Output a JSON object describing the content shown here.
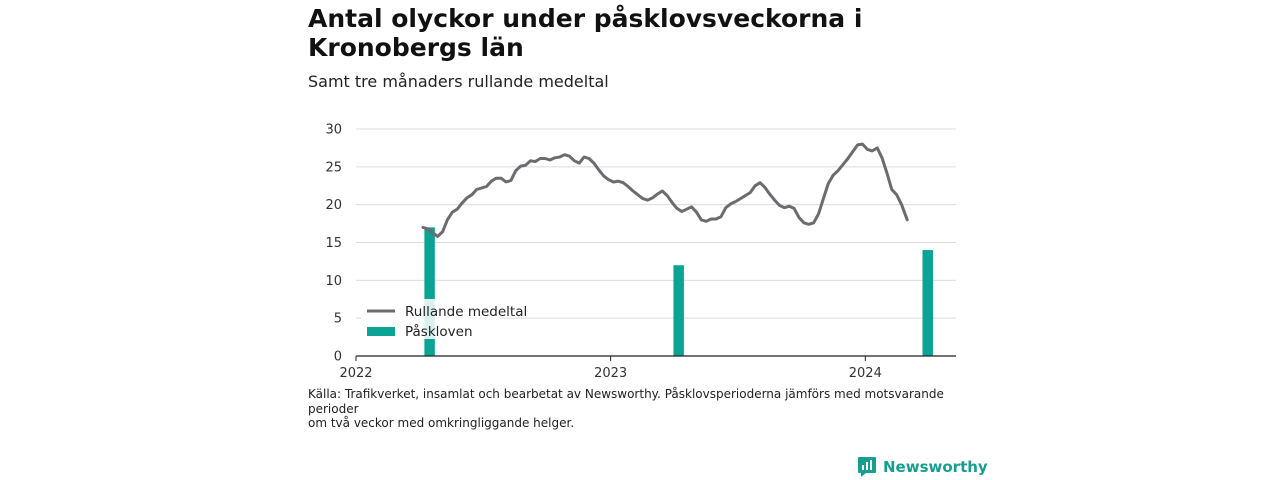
{
  "title": "Antal olyckor under påsklovsveckorna i Kronobergs län",
  "subtitle": "Samt tre månaders rullande medeltal",
  "source_lines": [
    "Källa: Trafikverket, insamlat och bearbetat av Newsworthy. Påsklovsperioderna jämförs med motsvarande perioder",
    "om två veckor med omkringliggande helger."
  ],
  "brand": "Newsworthy",
  "colors": {
    "line": "#6b6b70",
    "bar": "#0aa394",
    "brand": "#169e8f"
  },
  "chart_data": {
    "type": "bar+line",
    "ylim": [
      0,
      30
    ],
    "yticks": [
      0,
      5,
      10,
      15,
      20,
      25,
      30
    ],
    "xlim": [
      "2022-01-01",
      "2024-05-10"
    ],
    "xticks": [
      {
        "label": "2022",
        "date": "2022-01-01"
      },
      {
        "label": "2023",
        "date": "2023-01-01"
      },
      {
        "label": "2024",
        "date": "2024-01-01"
      }
    ],
    "grid": true,
    "legend_position": "bottom-left",
    "series": [
      {
        "name": "Rullande medeltal",
        "type": "line",
        "points": [
          [
            "2022-04-07",
            17.0
          ],
          [
            "2022-04-14",
            16.8
          ],
          [
            "2022-04-21",
            16.3
          ],
          [
            "2022-04-28",
            15.8
          ],
          [
            "2022-05-05",
            16.4
          ],
          [
            "2022-05-12",
            18.0
          ],
          [
            "2022-05-19",
            19.0
          ],
          [
            "2022-05-26",
            19.4
          ],
          [
            "2022-06-02",
            20.2
          ],
          [
            "2022-06-09",
            20.9
          ],
          [
            "2022-06-16",
            21.3
          ],
          [
            "2022-06-23",
            22.0
          ],
          [
            "2022-06-30",
            22.2
          ],
          [
            "2022-07-07",
            22.4
          ],
          [
            "2022-07-14",
            23.1
          ],
          [
            "2022-07-21",
            23.5
          ],
          [
            "2022-07-28",
            23.5
          ],
          [
            "2022-08-04",
            23.0
          ],
          [
            "2022-08-11",
            23.2
          ],
          [
            "2022-08-18",
            24.5
          ],
          [
            "2022-08-25",
            25.1
          ],
          [
            "2022-09-01",
            25.2
          ],
          [
            "2022-09-08",
            25.8
          ],
          [
            "2022-09-15",
            25.7
          ],
          [
            "2022-09-22",
            26.1
          ],
          [
            "2022-09-29",
            26.1
          ],
          [
            "2022-10-06",
            25.9
          ],
          [
            "2022-10-13",
            26.2
          ],
          [
            "2022-10-20",
            26.3
          ],
          [
            "2022-10-27",
            26.6
          ],
          [
            "2022-11-03",
            26.4
          ],
          [
            "2022-11-10",
            25.8
          ],
          [
            "2022-11-17",
            25.5
          ],
          [
            "2022-11-24",
            26.3
          ],
          [
            "2022-12-01",
            26.1
          ],
          [
            "2022-12-08",
            25.5
          ],
          [
            "2022-12-15",
            24.6
          ],
          [
            "2022-12-22",
            23.8
          ],
          [
            "2022-12-29",
            23.3
          ],
          [
            "2023-01-05",
            23.0
          ],
          [
            "2023-01-12",
            23.1
          ],
          [
            "2023-01-19",
            22.9
          ],
          [
            "2023-01-26",
            22.4
          ],
          [
            "2023-02-02",
            21.8
          ],
          [
            "2023-02-09",
            21.3
          ],
          [
            "2023-02-16",
            20.8
          ],
          [
            "2023-02-23",
            20.6
          ],
          [
            "2023-03-02",
            20.9
          ],
          [
            "2023-03-09",
            21.4
          ],
          [
            "2023-03-16",
            21.8
          ],
          [
            "2023-03-23",
            21.2
          ],
          [
            "2023-03-30",
            20.3
          ],
          [
            "2023-04-06",
            19.5
          ],
          [
            "2023-04-13",
            19.1
          ],
          [
            "2023-04-20",
            19.4
          ],
          [
            "2023-04-27",
            19.7
          ],
          [
            "2023-05-04",
            19.0
          ],
          [
            "2023-05-11",
            18.0
          ],
          [
            "2023-05-18",
            17.8
          ],
          [
            "2023-05-25",
            18.1
          ],
          [
            "2023-06-01",
            18.1
          ],
          [
            "2023-06-08",
            18.4
          ],
          [
            "2023-06-15",
            19.6
          ],
          [
            "2023-06-22",
            20.1
          ],
          [
            "2023-06-29",
            20.4
          ],
          [
            "2023-07-06",
            20.8
          ],
          [
            "2023-07-13",
            21.2
          ],
          [
            "2023-07-20",
            21.6
          ],
          [
            "2023-07-27",
            22.5
          ],
          [
            "2023-08-03",
            22.9
          ],
          [
            "2023-08-10",
            22.3
          ],
          [
            "2023-08-17",
            21.4
          ],
          [
            "2023-08-24",
            20.6
          ],
          [
            "2023-08-31",
            19.9
          ],
          [
            "2023-09-07",
            19.6
          ],
          [
            "2023-09-14",
            19.8
          ],
          [
            "2023-09-21",
            19.5
          ],
          [
            "2023-09-28",
            18.3
          ],
          [
            "2023-10-05",
            17.6
          ],
          [
            "2023-10-12",
            17.4
          ],
          [
            "2023-10-19",
            17.6
          ],
          [
            "2023-10-26",
            18.8
          ],
          [
            "2023-11-02",
            20.8
          ],
          [
            "2023-11-09",
            22.8
          ],
          [
            "2023-11-16",
            23.9
          ],
          [
            "2023-11-23",
            24.5
          ],
          [
            "2023-11-30",
            25.3
          ],
          [
            "2023-12-07",
            26.1
          ],
          [
            "2023-12-14",
            27.0
          ],
          [
            "2023-12-21",
            27.9
          ],
          [
            "2023-12-28",
            28.0
          ],
          [
            "2024-01-04",
            27.3
          ],
          [
            "2024-01-11",
            27.1
          ],
          [
            "2024-01-18",
            27.5
          ],
          [
            "2024-01-25",
            26.2
          ],
          [
            "2024-02-01",
            24.2
          ],
          [
            "2024-02-08",
            22.0
          ],
          [
            "2024-02-15",
            21.3
          ],
          [
            "2024-02-22",
            20.0
          ],
          [
            "2024-03-01",
            18.0
          ]
        ]
      },
      {
        "name": "Påskloven",
        "type": "bar",
        "bars": [
          {
            "start": "2022-04-09",
            "end": "2022-04-24",
            "value": 17
          },
          {
            "start": "2023-04-01",
            "end": "2023-04-16",
            "value": 12
          },
          {
            "start": "2024-03-23",
            "end": "2024-04-07",
            "value": 14
          }
        ]
      }
    ]
  }
}
